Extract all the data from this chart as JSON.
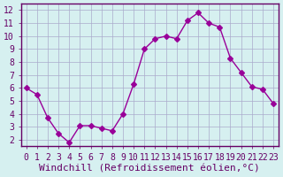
{
  "hours": [
    0,
    1,
    2,
    3,
    4,
    5,
    6,
    7,
    8,
    9,
    10,
    11,
    12,
    13,
    14,
    15,
    16,
    17,
    18,
    19,
    20,
    21,
    22,
    23
  ],
  "values": [
    6.0,
    5.5,
    3.7,
    2.5,
    1.8,
    3.1,
    3.1,
    2.9,
    2.7,
    4.0,
    6.3,
    9.0,
    9.8,
    10.0,
    9.8,
    11.2,
    11.8,
    11.0,
    10.7,
    8.3,
    7.2,
    6.1,
    5.9,
    4.8
  ],
  "line_color": "#990099",
  "marker": "D",
  "marker_size": 3,
  "bg_color": "#d6f0f0",
  "grid_color": "#aaaacc",
  "xlabel": "Windchill (Refroidissement éolien,°C)",
  "xlabel_color": "#660066",
  "xlabel_fontsize": 8,
  "tick_color": "#660066",
  "tick_fontsize": 7,
  "ylim": [
    1.5,
    12.5
  ],
  "yticks": [
    2,
    3,
    4,
    5,
    6,
    7,
    8,
    9,
    10,
    11,
    12
  ],
  "xlim": [
    -0.5,
    23.5
  ],
  "xticks": [
    0,
    1,
    2,
    3,
    4,
    5,
    6,
    7,
    8,
    9,
    10,
    11,
    12,
    13,
    14,
    15,
    16,
    17,
    18,
    19,
    20,
    21,
    22,
    23
  ],
  "border_color": "#660066"
}
